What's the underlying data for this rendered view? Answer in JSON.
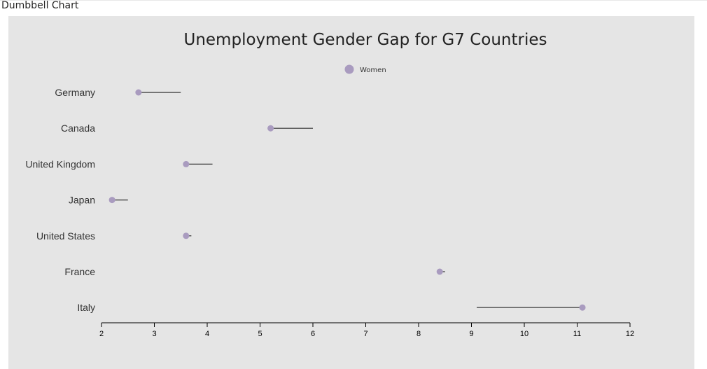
{
  "visual": {
    "header_title": "Dumbbell Chart"
  },
  "chart_data": {
    "type": "dumbbell",
    "title": "Unemployment Gender Gap for G7 Countries",
    "legend": [
      {
        "name": "Women",
        "color": "#a99bbf"
      }
    ],
    "legend_position": "top-center",
    "categories": [
      "Germany",
      "Canada",
      "United Kingdom",
      "Japan",
      "United States",
      "France",
      "Italy"
    ],
    "series": [
      {
        "name": "Women",
        "values": [
          2.7,
          5.2,
          3.6,
          2.2,
          3.6,
          8.4,
          11.1
        ]
      },
      {
        "values": [
          3.5,
          6.0,
          4.1,
          2.5,
          3.7,
          8.5,
          9.1
        ]
      }
    ],
    "xlim": [
      2,
      12
    ],
    "xticks": [
      2,
      3,
      4,
      5,
      6,
      7,
      8,
      9,
      10,
      11,
      12
    ],
    "grid": false,
    "colors": {
      "women_dot": "#a99bbf",
      "connector": "#333333",
      "panel_bg": "#e5e5e5"
    }
  }
}
